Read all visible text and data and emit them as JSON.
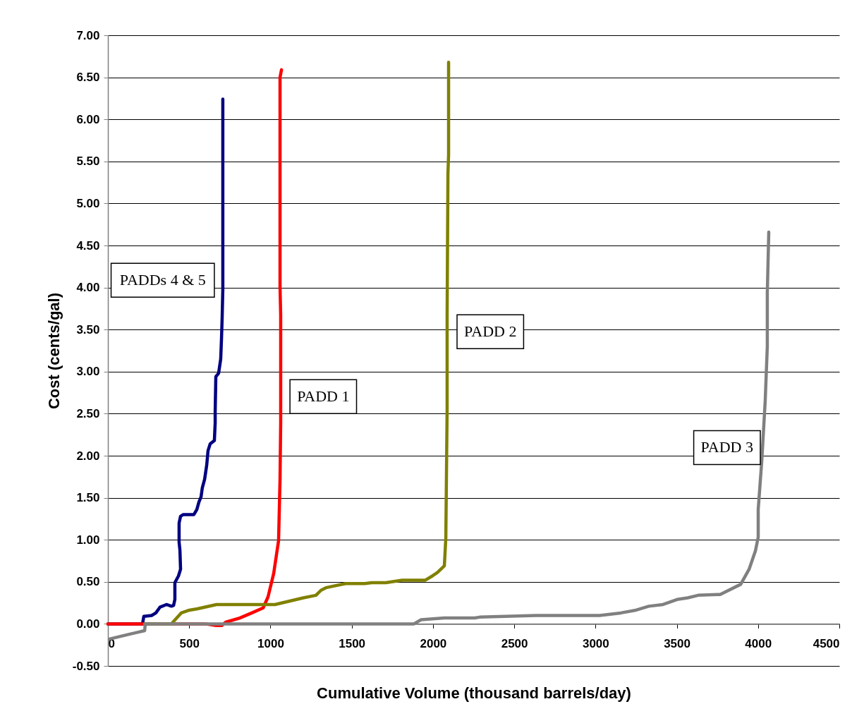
{
  "chart_data": {
    "type": "line",
    "xlabel": "Cumulative Volume (thousand barrels/day)",
    "ylabel": "Cost (cents/gal)",
    "xlim": [
      0,
      4500
    ],
    "xticks": [
      0,
      500,
      1000,
      1500,
      2000,
      2500,
      3000,
      3500,
      4000,
      4500
    ],
    "ylim": [
      -0.5,
      7
    ],
    "yticks": [
      {
        "value": -0.5,
        "label": "-0.50"
      },
      {
        "value": 0,
        "label": "0.00"
      },
      {
        "value": 0.5,
        "label": "0.50"
      },
      {
        "value": 1,
        "label": "1.00"
      },
      {
        "value": 1.5,
        "label": "1.50"
      },
      {
        "value": 2,
        "label": "2.00"
      },
      {
        "value": 2.5,
        "label": "2.50"
      },
      {
        "value": 3,
        "label": "3.00"
      },
      {
        "value": 3.5,
        "label": "3.50"
      },
      {
        "value": 4,
        "label": "4.00"
      },
      {
        "value": 4.5,
        "label": "4.50"
      },
      {
        "value": 5,
        "label": "5.00"
      },
      {
        "value": 5.5,
        "label": "5.50"
      },
      {
        "value": 6,
        "label": "6.00"
      },
      {
        "value": 6.5,
        "label": "6.50"
      },
      {
        "value": 7,
        "label": "7.00"
      }
    ],
    "grid": "y",
    "marker": "none",
    "line_style": "solid",
    "series": [
      {
        "name": "PADDs 4 & 5",
        "color": "#000080",
        "x": [
          0,
          213,
          221,
          269,
          295,
          321,
          360,
          391,
          404,
          412,
          412,
          434,
          447,
          443,
          438,
          438,
          447,
          464,
          529,
          547,
          560,
          573,
          581,
          595,
          608,
          616,
          629,
          655,
          660,
          660,
          664,
          681,
          694,
          699,
          703,
          707,
          707,
          707
        ],
        "values": [
          0,
          0,
          0.09,
          0.1,
          0.13,
          0.2,
          0.23,
          0.21,
          0.22,
          0.29,
          0.49,
          0.57,
          0.65,
          0.88,
          0.97,
          1.2,
          1.28,
          1.3,
          1.3,
          1.36,
          1.45,
          1.51,
          1.62,
          1.72,
          1.89,
          2.06,
          2.14,
          2.18,
          2.39,
          2.53,
          2.94,
          2.98,
          3.15,
          3.4,
          3.65,
          3.98,
          4.74,
          6.24
        ]
      },
      {
        "name": "PADD 1",
        "color": "#ff0000",
        "x": [
          0,
          600,
          667,
          700,
          725,
          811,
          885,
          955,
          985,
          1020,
          1050,
          1059,
          1063,
          1063,
          1059,
          1059,
          1059,
          1068
        ],
        "values": [
          0,
          0,
          -0.02,
          -0.02,
          0.02,
          0.07,
          0.13,
          0.19,
          0.32,
          0.6,
          0.99,
          1.72,
          2.39,
          3.67,
          4.01,
          6.19,
          6.5,
          6.59
        ]
      },
      {
        "name": "PADD 2",
        "color": "#808000",
        "x": [
          225,
          390,
          451,
          495,
          551,
          668,
          1028,
          1202,
          1280,
          1311,
          1341,
          1462,
          1580,
          1623,
          1710,
          1810,
          1953,
          1996,
          2027,
          2070,
          2079,
          2087,
          2087,
          2092,
          2096,
          2096
        ],
        "values": [
          0,
          0,
          0.13,
          0.16,
          0.18,
          0.23,
          0.23,
          0.31,
          0.34,
          0.4,
          0.43,
          0.48,
          0.48,
          0.49,
          0.49,
          0.52,
          0.52,
          0.57,
          0.61,
          0.69,
          1.02,
          2.56,
          3.67,
          5.35,
          5.58,
          6.68
        ]
      },
      {
        "name": "PADD 3",
        "color": "#808080",
        "x": [
          9,
          117,
          182,
          226,
          230,
          1883,
          1927,
          2070,
          2257,
          2287,
          2634,
          3025,
          3155,
          3242,
          3328,
          3415,
          3502,
          3567,
          3632,
          3767,
          3893,
          3945,
          3984,
          4001,
          4001,
          4023,
          4044,
          4057,
          4057,
          4066
        ],
        "values": [
          -0.18,
          -0.13,
          -0.1,
          -0.08,
          0,
          0,
          0.05,
          0.07,
          0.07,
          0.08,
          0.1,
          0.1,
          0.13,
          0.16,
          0.21,
          0.23,
          0.29,
          0.31,
          0.34,
          0.35,
          0.47,
          0.65,
          0.87,
          1.03,
          1.36,
          1.94,
          2.65,
          3.3,
          3.94,
          4.66
        ]
      }
    ]
  }
}
